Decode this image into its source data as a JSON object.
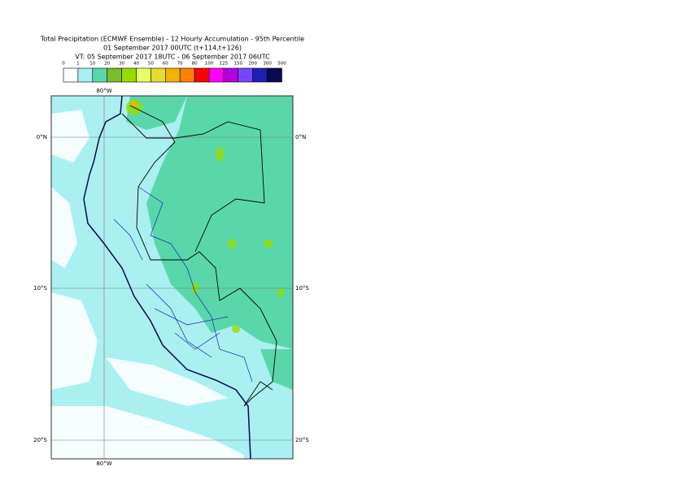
{
  "header": {
    "title": "Total Precipitation (ECMWF Ensemble) - 12 Hourly Accumulation - 95th Percentile",
    "base_time": "01 September 2017 00UTC (t+114,t+126)",
    "valid_time": "VT: 05 September 2017 18UTC - 06 September 2017 06UTC"
  },
  "legend": {
    "ticks": [
      0,
      1,
      10,
      20,
      30,
      40,
      50,
      60,
      70,
      80,
      100,
      125,
      150,
      200,
      300,
      500
    ],
    "colors": [
      "#ffffff",
      "#aaf0f0",
      "#5ad7aa",
      "#78be28",
      "#96dc00",
      "#e6ff64",
      "#e6dc32",
      "#f0b400",
      "#fa8200",
      "#ff0000",
      "#ff00ff",
      "#b400dc",
      "#7846ff",
      "#1e1eb4",
      "#0a0a50"
    ]
  },
  "map": {
    "lon_labels": [
      "80°W"
    ],
    "lat_labels": [
      "0°N",
      "10°S",
      "20°S"
    ]
  }
}
